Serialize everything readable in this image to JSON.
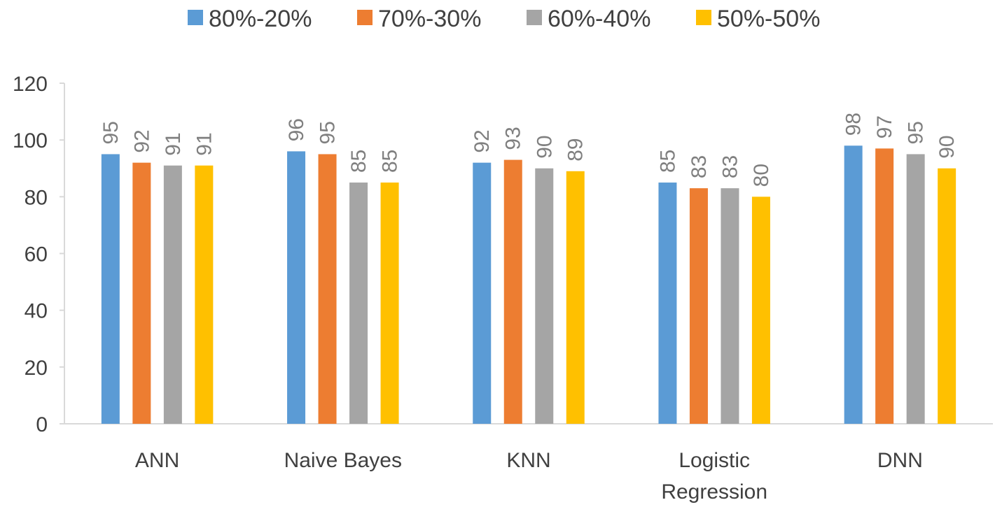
{
  "chart_data": {
    "type": "bar",
    "title": "",
    "xlabel": "",
    "ylabel": "",
    "ylim": [
      0,
      120
    ],
    "yticks": [
      0,
      20,
      40,
      60,
      80,
      100,
      120
    ],
    "grid": false,
    "legend_position": "top",
    "categories": [
      [
        "ANN"
      ],
      [
        "Naive Bayes"
      ],
      [
        "KNN"
      ],
      [
        "Logistic",
        "Regression"
      ],
      [
        "DNN"
      ]
    ],
    "series": [
      {
        "name": "80%-20%",
        "color": "#5b9bd5",
        "values": [
          95,
          96,
          92,
          85,
          98
        ]
      },
      {
        "name": "70%-30%",
        "color": "#ed7d31",
        "values": [
          92,
          95,
          93,
          83,
          97
        ]
      },
      {
        "name": "60%-40%",
        "color": "#a5a5a5",
        "values": [
          91,
          85,
          90,
          83,
          95
        ]
      },
      {
        "name": "50%-50%",
        "color": "#ffc000",
        "values": [
          91,
          85,
          89,
          80,
          90
        ]
      }
    ]
  }
}
